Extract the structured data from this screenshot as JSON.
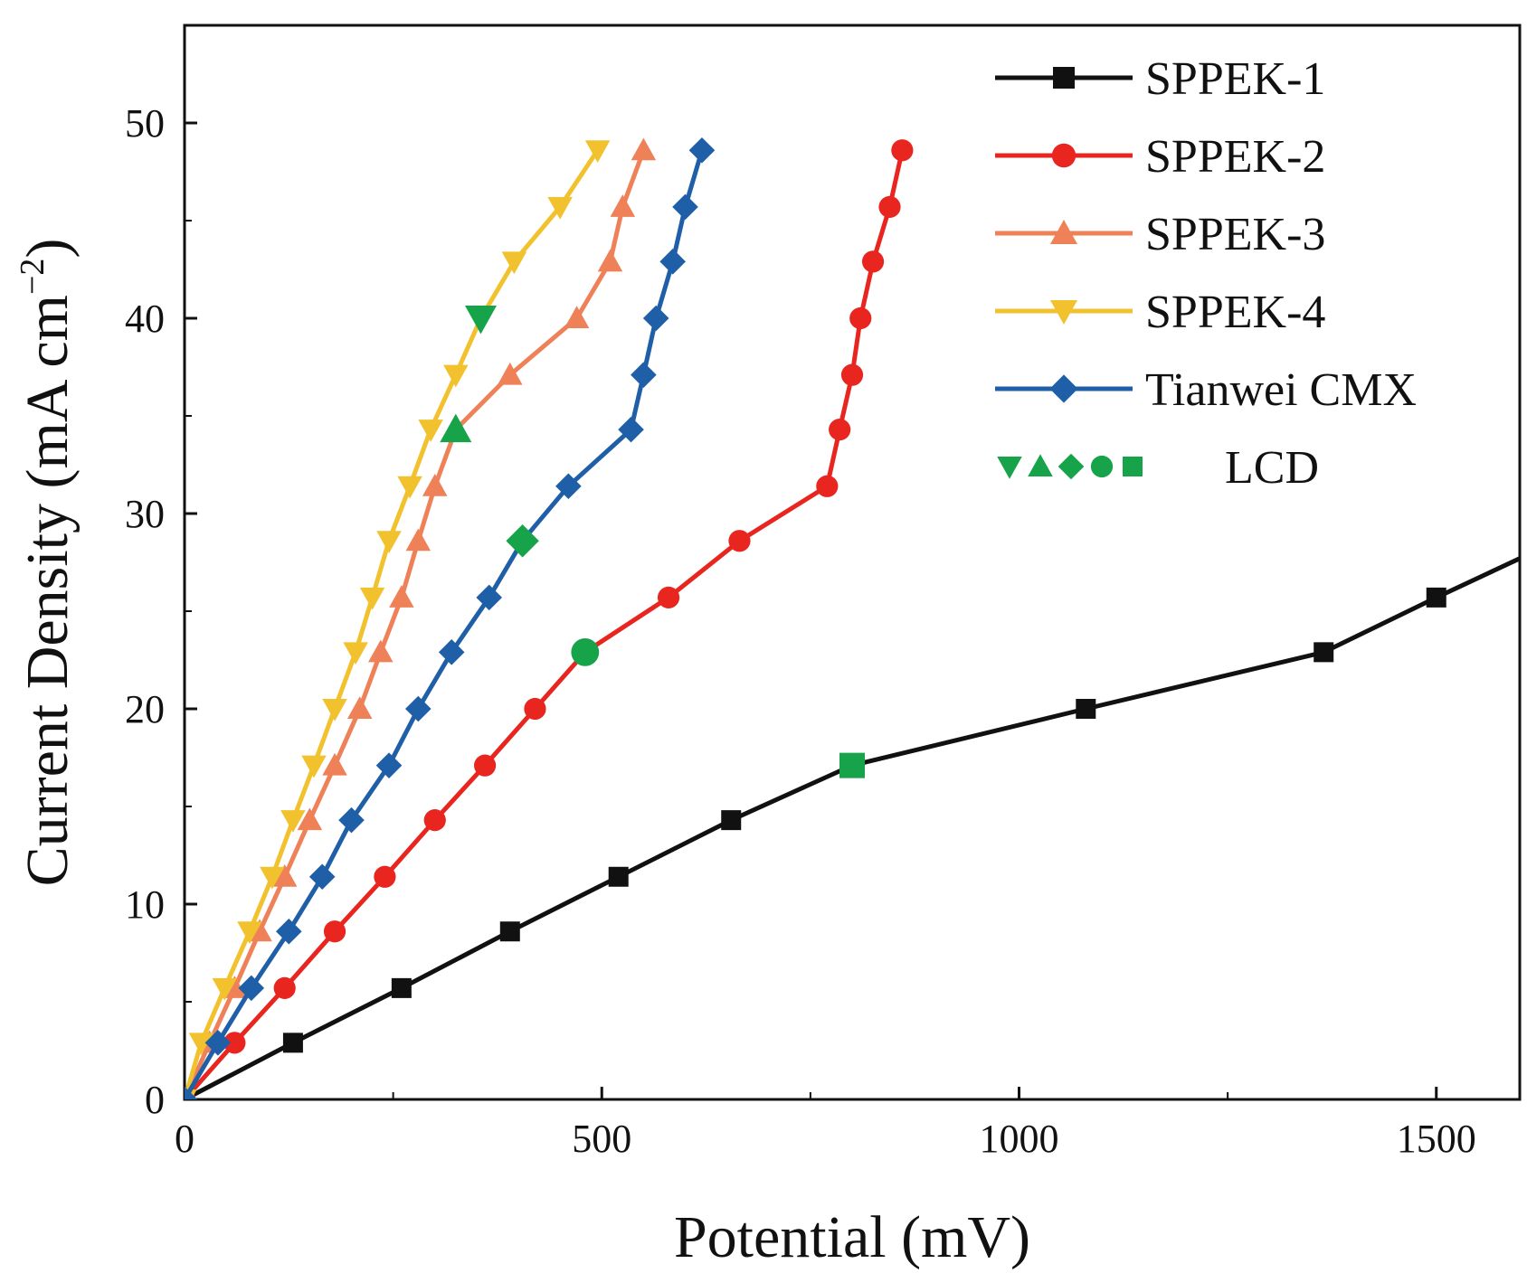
{
  "chart_data": {
    "type": "line",
    "xlabel": "Potential (mV)",
    "ylabel": "Current Density (mA cm⁻²)",
    "ylabel_main": "Current Density (mA cm",
    "ylabel_sup": "−2",
    "ylabel_close": ")",
    "xlim": [
      0,
      1600
    ],
    "ylim": [
      0,
      55
    ],
    "xticks": [
      0,
      500,
      1000,
      1500
    ],
    "yticks": [
      0,
      10,
      20,
      30,
      40,
      50
    ],
    "xtick_labels": [
      "0",
      "500",
      "1000",
      "1500"
    ],
    "ytick_labels": [
      "0",
      "10",
      "20",
      "30",
      "40",
      "50"
    ],
    "legend_position": "top-right",
    "series": [
      {
        "name": "SPPEK-1",
        "color": "#111111",
        "marker": "square",
        "x": [
          0,
          130,
          260,
          390,
          520,
          655,
          800,
          1080,
          1365,
          1500,
          1600
        ],
        "y": [
          0,
          2.9,
          5.7,
          8.6,
          11.4,
          14.3,
          17.1,
          20.0,
          22.9,
          25.7,
          27.7
        ],
        "marker_indices": [
          0,
          1,
          2,
          3,
          4,
          5,
          6,
          7,
          8,
          9
        ]
      },
      {
        "name": "SPPEK-2",
        "color": "#e8251f",
        "marker": "circle",
        "x": [
          0,
          60,
          120,
          180,
          240,
          300,
          360,
          420,
          480,
          580,
          665,
          770,
          785,
          800,
          810,
          825,
          845,
          860
        ],
        "y": [
          0,
          2.9,
          5.7,
          8.6,
          11.4,
          14.3,
          17.1,
          20.0,
          22.9,
          25.7,
          28.6,
          31.4,
          34.3,
          37.1,
          40.0,
          42.9,
          45.7,
          48.6
        ],
        "marker_indices": [
          0,
          1,
          2,
          3,
          4,
          5,
          6,
          7,
          8,
          9,
          10,
          11,
          12,
          13,
          14,
          15,
          16,
          17
        ]
      },
      {
        "name": "SPPEK-3",
        "color": "#ef8158",
        "marker": "triangle-up",
        "x": [
          0,
          30,
          60,
          90,
          120,
          150,
          180,
          210,
          235,
          260,
          280,
          300,
          325,
          390,
          470,
          510,
          525,
          550
        ],
        "y": [
          0,
          2.9,
          5.7,
          8.6,
          11.4,
          14.3,
          17.1,
          20.0,
          22.9,
          25.7,
          28.6,
          31.4,
          34.3,
          37.1,
          40.0,
          42.9,
          45.7,
          48.6
        ],
        "marker_indices": [
          0,
          1,
          2,
          3,
          4,
          5,
          6,
          7,
          8,
          9,
          10,
          11,
          12,
          13,
          14,
          15,
          16,
          17
        ]
      },
      {
        "name": "SPPEK-4",
        "color": "#f2c12e",
        "marker": "triangle-down",
        "x": [
          0,
          20,
          48,
          78,
          105,
          130,
          155,
          180,
          205,
          225,
          245,
          270,
          295,
          325,
          355,
          395,
          450,
          495
        ],
        "y": [
          0,
          2.9,
          5.7,
          8.6,
          11.4,
          14.3,
          17.1,
          20.0,
          22.9,
          25.7,
          28.6,
          31.4,
          34.3,
          37.1,
          40.0,
          42.9,
          45.7,
          48.6
        ],
        "marker_indices": [
          0,
          1,
          2,
          3,
          4,
          5,
          6,
          7,
          8,
          9,
          10,
          11,
          12,
          13,
          14,
          15,
          16,
          17
        ]
      },
      {
        "name": "Tianwei CMX",
        "color": "#1f5fa8",
        "marker": "diamond",
        "x": [
          0,
          40,
          80,
          125,
          165,
          200,
          245,
          280,
          320,
          365,
          405,
          460,
          535,
          550,
          565,
          585,
          600,
          620
        ],
        "y": [
          0,
          2.9,
          5.7,
          8.6,
          11.4,
          14.3,
          17.1,
          20.0,
          22.9,
          25.7,
          28.6,
          31.4,
          34.3,
          37.1,
          40.0,
          42.9,
          45.7,
          48.6
        ],
        "marker_indices": [
          0,
          1,
          2,
          3,
          4,
          5,
          6,
          7,
          8,
          9,
          10,
          11,
          12,
          13,
          14,
          15,
          16,
          17
        ]
      }
    ],
    "lcd": {
      "name": "LCD",
      "color": "#16a34a",
      "points": [
        {
          "series": "SPPEK-4",
          "marker": "triangle-down",
          "x": 355,
          "y": 40.0
        },
        {
          "series": "SPPEK-3",
          "marker": "triangle-up",
          "x": 325,
          "y": 34.3
        },
        {
          "series": "Tianwei CMX",
          "marker": "diamond",
          "x": 405,
          "y": 28.6
        },
        {
          "series": "SPPEK-2",
          "marker": "circle",
          "x": 480,
          "y": 22.9
        },
        {
          "series": "SPPEK-1",
          "marker": "square",
          "x": 800,
          "y": 17.1
        }
      ]
    }
  }
}
